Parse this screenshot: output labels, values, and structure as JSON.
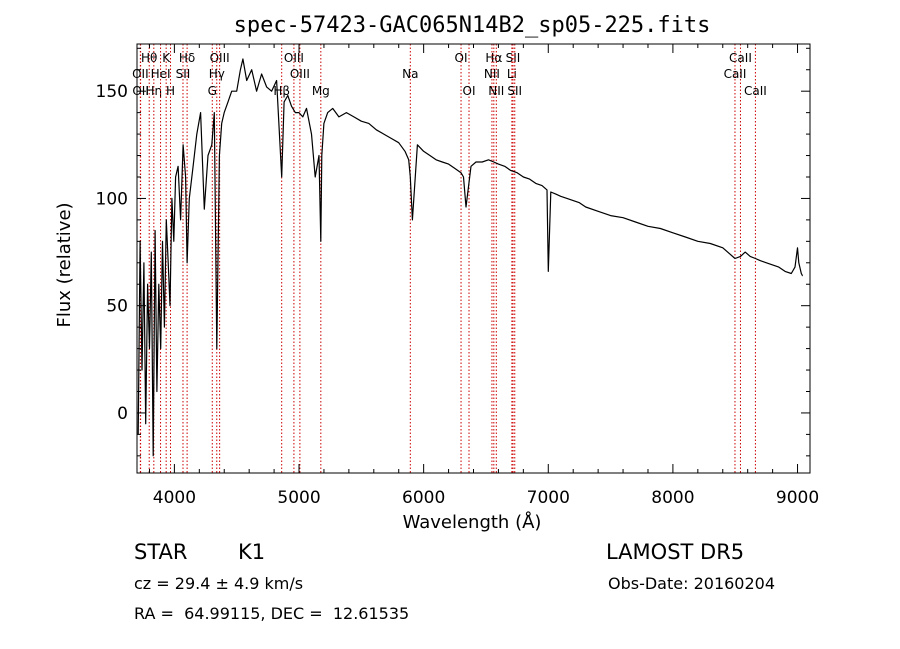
{
  "chart_data": {
    "type": "line",
    "title": "spec-57423-GAC065N14B2_sp05-225.fits",
    "xlabel": "Wavelength (Å)",
    "ylabel": "Flux (relative)",
    "xlim": [
      3700,
      9100
    ],
    "ylim": [
      -28,
      172
    ],
    "xticks": [
      4000,
      5000,
      6000,
      7000,
      8000,
      9000
    ],
    "yticks": [
      0,
      50,
      100,
      150
    ],
    "grid": false,
    "line_color": "#000000",
    "marker_color": "#cc0000",
    "series": [
      {
        "x": [
          3710,
          3725,
          3740,
          3755,
          3770,
          3785,
          3800,
          3815,
          3830,
          3845,
          3860,
          3875,
          3890,
          3905,
          3920,
          3935,
          3950,
          3965,
          3980,
          3995,
          4010,
          4030,
          4050,
          4070,
          4090,
          4102,
          4120,
          4150,
          4180,
          4210,
          4240,
          4270,
          4300,
          4320,
          4340,
          4361,
          4380,
          4400,
          4430,
          4460,
          4500,
          4530,
          4550,
          4580,
          4620,
          4660,
          4700,
          4740,
          4780,
          4820,
          4861,
          4880,
          4910,
          4940,
          4970,
          5000,
          5030,
          5060,
          5100,
          5130,
          5160,
          5175,
          5183,
          5200,
          5230,
          5270,
          5320,
          5380,
          5440,
          5500,
          5560,
          5620,
          5680,
          5740,
          5800,
          5850,
          5880,
          5893,
          5910,
          5950,
          6000,
          6050,
          6100,
          6150,
          6200,
          6250,
          6300,
          6320,
          6340,
          6380,
          6420,
          6470,
          6520,
          6563,
          6600,
          6650,
          6700,
          6750,
          6800,
          6850,
          6900,
          6950,
          6990,
          7000,
          7020,
          7060,
          7100,
          7150,
          7200,
          7250,
          7300,
          7400,
          7500,
          7600,
          7700,
          7800,
          7900,
          8000,
          8100,
          8200,
          8300,
          8400,
          8498,
          8542,
          8580,
          8620,
          8662,
          8700,
          8750,
          8800,
          8850,
          8900,
          8950,
          8980,
          9000,
          9010,
          9030,
          9040,
          9041
        ],
        "y": [
          -10,
          80,
          20,
          70,
          -5,
          60,
          30,
          75,
          -20,
          85,
          10,
          60,
          30,
          80,
          40,
          90,
          70,
          50,
          100,
          80,
          110,
          115,
          90,
          125,
          110,
          70,
          100,
          115,
          130,
          140,
          95,
          120,
          125,
          140,
          30,
          120,
          135,
          140,
          145,
          150,
          150,
          160,
          165,
          155,
          160,
          150,
          158,
          152,
          150,
          155,
          110,
          145,
          148,
          143,
          140,
          140,
          138,
          142,
          130,
          110,
          120,
          80,
          120,
          135,
          140,
          142,
          138,
          140,
          138,
          136,
          135,
          132,
          130,
          128,
          126,
          122,
          118,
          110,
          90,
          125,
          122,
          120,
          118,
          117,
          116,
          114,
          112,
          110,
          96,
          115,
          117,
          117,
          118,
          117,
          116,
          115,
          113,
          112,
          110,
          109,
          107,
          106,
          104,
          66,
          103,
          102,
          101,
          100,
          99,
          98,
          96,
          94,
          92,
          91,
          89,
          87,
          86,
          84,
          82,
          80,
          79,
          77,
          72,
          73,
          75,
          73,
          72,
          71,
          70,
          69,
          68,
          66,
          65,
          68,
          77,
          70,
          65,
          64,
          64
        ]
      }
    ],
    "lines": [
      {
        "label": "Hθ",
        "x": 3798,
        "row": 1
      },
      {
        "label": "OII",
        "x": 3727,
        "row": 2
      },
      {
        "label": "OII",
        "x": 3729,
        "row": 3
      },
      {
        "label": "Hη",
        "x": 3835,
        "row": 3
      },
      {
        "label": "HeI",
        "x": 3889,
        "row": 2
      },
      {
        "label": "K",
        "x": 3934,
        "row": 1
      },
      {
        "label": "H",
        "x": 3969,
        "row": 3
      },
      {
        "label": "SII",
        "x": 4069,
        "row": 2
      },
      {
        "label": "Hδ",
        "x": 4102,
        "row": 1
      },
      {
        "label": "G",
        "x": 4304,
        "row": 3
      },
      {
        "label": "OIII",
        "x": 4363,
        "row": 1
      },
      {
        "label": "Hγ",
        "x": 4340,
        "row": 2
      },
      {
        "label": "OIII",
        "x": 4959,
        "row": 1
      },
      {
        "label": "OIII",
        "x": 5007,
        "row": 2
      },
      {
        "label": "Hβ",
        "x": 4861,
        "row": 3
      },
      {
        "label": "Mg",
        "x": 5175,
        "row": 3
      },
      {
        "label": "Na",
        "x": 5893,
        "row": 2
      },
      {
        "label": "OI",
        "x": 6300,
        "row": 1
      },
      {
        "label": "OI",
        "x": 6364,
        "row": 3
      },
      {
        "label": "Hα",
        "x": 6563,
        "row": 1
      },
      {
        "label": "NII",
        "x": 6548,
        "row": 2
      },
      {
        "label": "NII",
        "x": 6583,
        "row": 3
      },
      {
        "label": "SII",
        "x": 6717,
        "row": 1
      },
      {
        "label": "Li",
        "x": 6708,
        "row": 2
      },
      {
        "label": "SII",
        "x": 6731,
        "row": 3
      },
      {
        "label": "CaII",
        "x": 8542,
        "row": 1
      },
      {
        "label": "CaII",
        "x": 8498,
        "row": 2
      },
      {
        "label": "CaII",
        "x": 8662,
        "row": 3
      }
    ]
  },
  "info": {
    "object_class": "STAR",
    "subclass": "K1",
    "cz": "cz = 29.4 ± 4.9 km/s",
    "coords": "RA =  64.99115, DEC =  12.61535",
    "survey": "LAMOST DR5",
    "obs_date": "Obs-Date: 20160204"
  }
}
